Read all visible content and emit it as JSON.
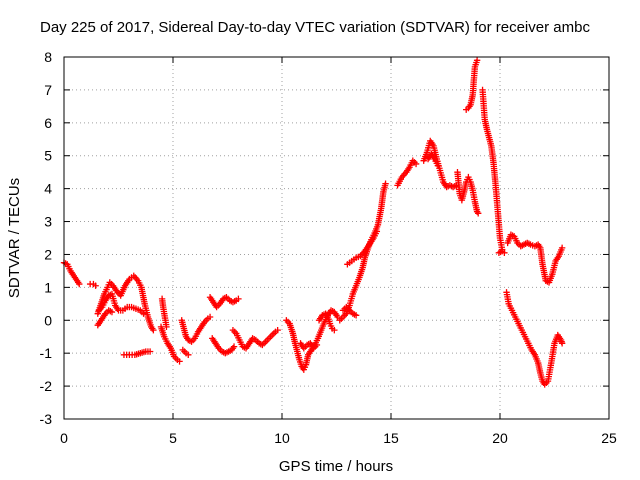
{
  "chart_data": {
    "type": "scatter",
    "title": "Day 225 of 2017, Sidereal Day-to-day VTEC variation (SDTVAR) for receiver ambc",
    "xlabel": "GPS time / hours",
    "ylabel": "SDTVAR / TECUs",
    "xlim": [
      0,
      25
    ],
    "ylim": [
      -3,
      8
    ],
    "xticks": [
      "0",
      "5",
      "10",
      "15",
      "20",
      "25"
    ],
    "yticks": [
      "-3",
      "-2",
      "-1",
      "0",
      "1",
      "2",
      "3",
      "4",
      "5",
      "6",
      "7",
      "8"
    ],
    "grid": true,
    "marker": "plus",
    "color": "#ff0000",
    "segments": [
      [
        [
          0.0,
          1.75
        ],
        [
          0.15,
          1.7
        ],
        [
          0.3,
          1.5
        ],
        [
          0.45,
          1.35
        ],
        [
          0.6,
          1.2
        ],
        [
          0.7,
          1.1
        ]
      ],
      [
        [
          1.2,
          1.1
        ],
        [
          1.35,
          1.1
        ],
        [
          1.45,
          1.05
        ]
      ],
      [
        [
          1.55,
          0.2
        ],
        [
          1.7,
          0.5
        ],
        [
          1.85,
          0.8
        ],
        [
          2.0,
          1.0
        ],
        [
          2.1,
          1.15
        ],
        [
          2.25,
          1.05
        ],
        [
          2.4,
          0.9
        ],
        [
          2.6,
          0.75
        ],
        [
          2.8,
          1.05
        ],
        [
          3.0,
          1.25
        ],
        [
          3.2,
          1.35
        ],
        [
          3.4,
          1.2
        ],
        [
          3.55,
          1.0
        ],
        [
          3.7,
          0.5
        ],
        [
          3.85,
          0.1
        ],
        [
          4.0,
          -0.2
        ],
        [
          4.1,
          -0.3
        ]
      ],
      [
        [
          1.6,
          0.3
        ],
        [
          1.75,
          0.4
        ],
        [
          1.9,
          0.6
        ],
        [
          2.05,
          0.75
        ],
        [
          2.2,
          0.8
        ],
        [
          2.35,
          0.45
        ],
        [
          2.5,
          0.3
        ],
        [
          2.7,
          0.3
        ],
        [
          2.9,
          0.4
        ],
        [
          3.1,
          0.4
        ],
        [
          3.3,
          0.35
        ],
        [
          3.5,
          0.3
        ],
        [
          3.65,
          0.2
        ]
      ],
      [
        [
          1.55,
          -0.15
        ],
        [
          1.7,
          0.0
        ],
        [
          1.9,
          0.2
        ],
        [
          2.05,
          0.3
        ],
        [
          2.2,
          0.25
        ]
      ],
      [
        [
          2.75,
          -1.05
        ],
        [
          3.0,
          -1.05
        ],
        [
          3.25,
          -1.05
        ],
        [
          3.5,
          -1.0
        ],
        [
          3.75,
          -0.95
        ],
        [
          3.95,
          -0.95
        ]
      ],
      [
        [
          4.45,
          -0.2
        ],
        [
          4.6,
          -0.5
        ],
        [
          4.75,
          -0.7
        ],
        [
          4.9,
          -0.85
        ],
        [
          5.05,
          -1.1
        ],
        [
          5.2,
          -1.2
        ],
        [
          5.3,
          -1.25
        ]
      ],
      [
        [
          4.5,
          0.65
        ],
        [
          4.55,
          0.4
        ],
        [
          4.6,
          0.2
        ],
        [
          4.65,
          0.0
        ],
        [
          4.7,
          -0.2
        ]
      ],
      [
        [
          5.4,
          0.0
        ],
        [
          5.5,
          -0.25
        ],
        [
          5.6,
          -0.5
        ],
        [
          5.7,
          -0.6
        ],
        [
          5.85,
          -0.65
        ],
        [
          6.0,
          -0.55
        ],
        [
          6.15,
          -0.35
        ],
        [
          6.3,
          -0.2
        ],
        [
          6.45,
          -0.05
        ],
        [
          6.6,
          0.05
        ],
        [
          6.7,
          0.1
        ]
      ],
      [
        [
          5.45,
          -0.9
        ],
        [
          5.6,
          -1.0
        ],
        [
          5.7,
          -1.05
        ]
      ],
      [
        [
          6.7,
          0.7
        ],
        [
          6.85,
          0.55
        ],
        [
          7.0,
          0.4
        ],
        [
          7.15,
          0.5
        ],
        [
          7.3,
          0.65
        ],
        [
          7.45,
          0.7
        ],
        [
          7.6,
          0.6
        ],
        [
          7.75,
          0.55
        ],
        [
          7.9,
          0.6
        ],
        [
          8.0,
          0.65
        ]
      ],
      [
        [
          6.8,
          -0.55
        ],
        [
          6.95,
          -0.7
        ],
        [
          7.1,
          -0.85
        ],
        [
          7.25,
          -0.95
        ],
        [
          7.4,
          -1.0
        ],
        [
          7.55,
          -0.95
        ],
        [
          7.7,
          -0.9
        ],
        [
          7.8,
          -0.8
        ]
      ],
      [
        [
          7.75,
          -0.3
        ],
        [
          7.9,
          -0.4
        ],
        [
          8.05,
          -0.6
        ],
        [
          8.2,
          -0.8
        ],
        [
          8.35,
          -0.85
        ],
        [
          8.5,
          -0.7
        ],
        [
          8.65,
          -0.55
        ],
        [
          8.8,
          -0.6
        ],
        [
          8.95,
          -0.7
        ],
        [
          9.1,
          -0.75
        ],
        [
          9.25,
          -0.65
        ],
        [
          9.4,
          -0.55
        ],
        [
          9.55,
          -0.45
        ],
        [
          9.7,
          -0.35
        ],
        [
          9.8,
          -0.3
        ]
      ],
      [
        [
          10.2,
          0.0
        ],
        [
          10.35,
          -0.1
        ],
        [
          10.5,
          -0.4
        ],
        [
          10.6,
          -0.7
        ],
        [
          10.7,
          -0.95
        ],
        [
          10.8,
          -1.2
        ],
        [
          10.9,
          -1.4
        ],
        [
          11.0,
          -1.5
        ],
        [
          11.1,
          -1.35
        ],
        [
          11.2,
          -1.05
        ],
        [
          11.35,
          -0.9
        ],
        [
          11.5,
          -0.75
        ],
        [
          11.65,
          -0.55
        ],
        [
          11.8,
          -0.3
        ],
        [
          11.95,
          -0.05
        ],
        [
          12.1,
          0.15
        ],
        [
          12.25,
          0.3
        ],
        [
          12.4,
          0.25
        ],
        [
          12.55,
          0.1
        ]
      ],
      [
        [
          10.85,
          -0.7
        ],
        [
          11.0,
          -0.85
        ],
        [
          11.15,
          -0.75
        ],
        [
          11.3,
          -0.7
        ],
        [
          11.45,
          -0.85
        ],
        [
          11.6,
          -0.75
        ]
      ],
      [
        [
          11.7,
          0.0
        ],
        [
          11.85,
          0.15
        ],
        [
          12.0,
          0.2
        ],
        [
          12.1,
          0.1
        ],
        [
          12.2,
          -0.1
        ],
        [
          12.3,
          -0.25
        ],
        [
          12.4,
          -0.3
        ]
      ],
      [
        [
          12.65,
          0.0
        ],
        [
          12.8,
          0.1
        ],
        [
          12.95,
          0.2
        ],
        [
          13.1,
          0.45
        ],
        [
          13.25,
          0.8
        ],
        [
          13.4,
          1.05
        ],
        [
          13.55,
          1.3
        ],
        [
          13.7,
          1.6
        ],
        [
          13.8,
          1.9
        ],
        [
          13.95,
          2.2
        ],
        [
          14.1,
          2.45
        ],
        [
          14.25,
          2.65
        ],
        [
          14.4,
          2.9
        ],
        [
          14.55,
          3.4
        ],
        [
          14.65,
          3.9
        ],
        [
          14.75,
          4.15
        ]
      ],
      [
        [
          12.8,
          0.3
        ],
        [
          12.95,
          0.4
        ],
        [
          13.1,
          0.3
        ],
        [
          13.25,
          0.2
        ],
        [
          13.4,
          0.15
        ]
      ],
      [
        [
          13.0,
          1.7
        ],
        [
          13.2,
          1.8
        ],
        [
          13.4,
          1.9
        ],
        [
          13.6,
          1.95
        ],
        [
          13.8,
          2.1
        ],
        [
          14.0,
          2.3
        ],
        [
          14.2,
          2.5
        ],
        [
          14.35,
          2.7
        ]
      ],
      [
        [
          15.3,
          4.1
        ],
        [
          15.5,
          4.35
        ],
        [
          15.7,
          4.5
        ],
        [
          15.85,
          4.65
        ],
        [
          16.0,
          4.85
        ],
        [
          16.15,
          4.75
        ]
      ],
      [
        [
          16.5,
          4.85
        ],
        [
          16.65,
          5.1
        ],
        [
          16.8,
          5.45
        ],
        [
          16.95,
          5.3
        ],
        [
          17.1,
          4.9
        ],
        [
          17.25,
          4.55
        ],
        [
          17.4,
          4.2
        ],
        [
          17.55,
          4.05
        ],
        [
          17.7,
          4.1
        ],
        [
          17.85,
          4.05
        ],
        [
          18.0,
          4.1
        ]
      ],
      [
        [
          16.7,
          4.9
        ],
        [
          16.85,
          5.05
        ],
        [
          17.0,
          4.9
        ],
        [
          17.15,
          4.7
        ]
      ],
      [
        [
          18.05,
          4.5
        ],
        [
          18.15,
          3.85
        ],
        [
          18.25,
          3.65
        ],
        [
          18.35,
          3.9
        ],
        [
          18.45,
          4.2
        ],
        [
          18.55,
          4.35
        ],
        [
          18.65,
          4.2
        ],
        [
          18.75,
          3.95
        ],
        [
          18.85,
          3.6
        ],
        [
          18.95,
          3.3
        ],
        [
          19.0,
          3.25
        ]
      ],
      [
        [
          18.45,
          6.4
        ],
        [
          18.55,
          6.45
        ],
        [
          18.65,
          6.55
        ],
        [
          18.75,
          6.85
        ],
        [
          18.8,
          7.3
        ],
        [
          18.85,
          7.7
        ],
        [
          18.95,
          7.9
        ]
      ],
      [
        [
          19.2,
          7.0
        ],
        [
          19.3,
          6.1
        ],
        [
          19.4,
          5.8
        ],
        [
          19.5,
          5.55
        ],
        [
          19.6,
          5.3
        ],
        [
          19.7,
          4.8
        ],
        [
          19.8,
          4.1
        ],
        [
          19.9,
          3.3
        ],
        [
          20.0,
          2.5
        ],
        [
          20.1,
          2.15
        ]
      ],
      [
        [
          19.95,
          2.05
        ],
        [
          20.1,
          2.1
        ],
        [
          20.2,
          2.05
        ]
      ],
      [
        [
          20.35,
          2.35
        ],
        [
          20.5,
          2.6
        ],
        [
          20.65,
          2.55
        ],
        [
          20.8,
          2.35
        ],
        [
          20.95,
          2.25
        ],
        [
          21.1,
          2.3
        ],
        [
          21.25,
          2.35
        ],
        [
          21.4,
          2.3
        ],
        [
          21.6,
          2.25
        ],
        [
          21.75,
          2.3
        ],
        [
          21.85,
          2.2
        ],
        [
          21.95,
          1.7
        ],
        [
          22.1,
          1.2
        ],
        [
          22.25,
          1.15
        ],
        [
          22.4,
          1.4
        ],
        [
          22.55,
          1.8
        ],
        [
          22.7,
          1.95
        ],
        [
          22.85,
          2.2
        ]
      ],
      [
        [
          20.3,
          0.85
        ],
        [
          20.4,
          0.5
        ],
        [
          20.55,
          0.3
        ],
        [
          20.7,
          0.1
        ],
        [
          20.85,
          -0.1
        ],
        [
          21.0,
          -0.3
        ],
        [
          21.15,
          -0.5
        ],
        [
          21.3,
          -0.7
        ],
        [
          21.45,
          -0.9
        ],
        [
          21.6,
          -1.05
        ],
        [
          21.75,
          -1.3
        ],
        [
          21.85,
          -1.6
        ],
        [
          21.95,
          -1.85
        ],
        [
          22.05,
          -1.95
        ],
        [
          22.2,
          -1.85
        ],
        [
          22.35,
          -1.3
        ],
        [
          22.5,
          -0.7
        ],
        [
          22.65,
          -0.45
        ],
        [
          22.8,
          -0.6
        ],
        [
          22.85,
          -0.7
        ]
      ]
    ]
  }
}
